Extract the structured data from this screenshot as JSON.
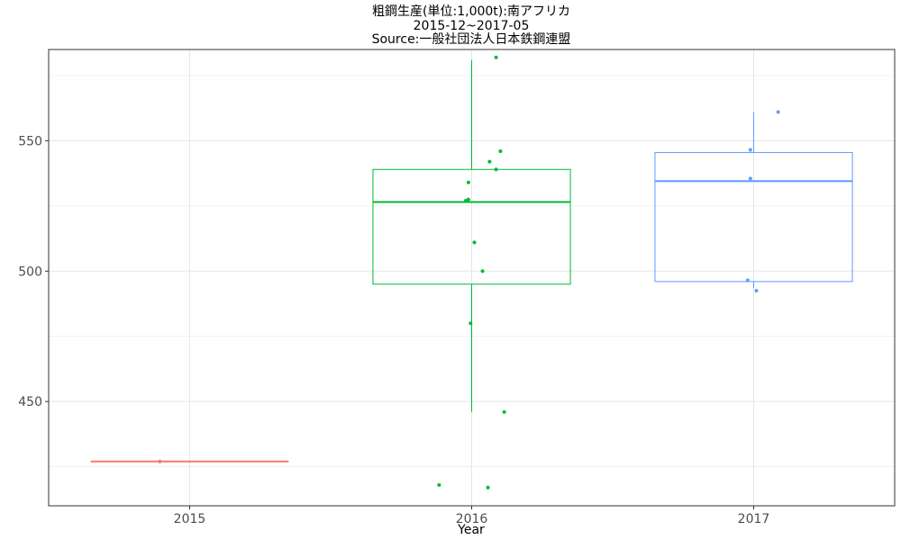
{
  "chart_data": {
    "type": "boxplot",
    "title": "粗鋼生産(単位:1,000t):南アフリカ",
    "subtitle": "2015-12~2017-05",
    "source": "Source:一般社団法人日本鉄鋼連盟",
    "xlabel": "Year",
    "ylabel": "",
    "categories": [
      "2015",
      "2016",
      "2017"
    ],
    "ylim": [
      410,
      585
    ],
    "yticks": [
      450,
      500,
      550
    ],
    "grid": true,
    "legend": "none",
    "series": [
      {
        "category": "2015",
        "color": "#F8766D",
        "box": {
          "min": 427,
          "q1": 427,
          "median": 427,
          "q3": 427,
          "max": 427
        },
        "points": [
          427
        ]
      },
      {
        "category": "2016",
        "color": "#00BA38",
        "box": {
          "min": 446,
          "q1": 495,
          "median": 526.5,
          "q3": 539,
          "max": 581
        },
        "points": [
          582,
          546,
          542,
          539,
          534,
          527.5,
          527,
          511,
          500,
          480,
          446,
          418,
          417
        ]
      },
      {
        "category": "2017",
        "color": "#619CFF",
        "box": {
          "min": 493.5,
          "q1": 496,
          "median": 534.5,
          "q3": 545.5,
          "max": 561
        },
        "points": [
          561,
          546.5,
          535.5,
          496.5,
          492.5
        ]
      }
    ]
  }
}
